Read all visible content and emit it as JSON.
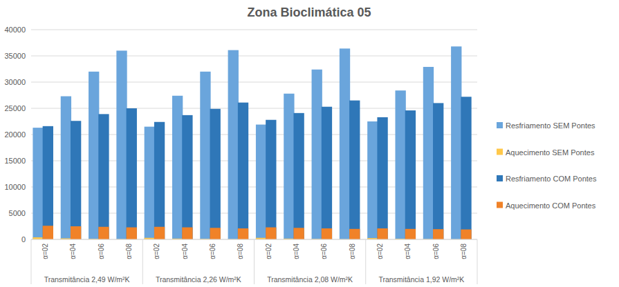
{
  "chart_data": {
    "type": "bar",
    "title": "Zona Bioclimática  05",
    "stacked": false,
    "grid": true,
    "legend": "right",
    "categories": [
      "α=02",
      "α=04",
      "α=06",
      "α=08",
      "α=02",
      "α=04",
      "α=06",
      "α=08",
      "α=02",
      "α=04",
      "α=06",
      "α=08",
      "α=02",
      "α=04",
      "α=06",
      "α=08"
    ],
    "category_groups": [
      {
        "label": "Transmitância 2,49 W/m²K",
        "count": 4
      },
      {
        "label": "Transmitância 2,26 W/m²K",
        "count": 4
      },
      {
        "label": "Transmitância 2,08 W/m²K",
        "count": 4
      },
      {
        "label": "Transmitância 1,92 W/m²K",
        "count": 4
      }
    ],
    "ylim": [
      0,
      40000
    ],
    "yticks": [
      0,
      5000,
      10000,
      15000,
      20000,
      25000,
      30000,
      35000,
      40000
    ],
    "series": [
      {
        "name": "Resfriamento SEM Pontes",
        "color": "#6aa5dc",
        "values": [
          21300,
          27300,
          32000,
          36000,
          21500,
          27400,
          32000,
          36100,
          21900,
          27800,
          32400,
          36400,
          22500,
          28400,
          32900,
          36800
        ]
      },
      {
        "name": "Aquecimento SEM Pontes",
        "color": "#ffc84a",
        "values": [
          400,
          200,
          100,
          50,
          300,
          150,
          100,
          50,
          300,
          150,
          80,
          40,
          250,
          120,
          60,
          30
        ]
      },
      {
        "name": "Resfriamento COM Pontes",
        "color": "#2f77b8",
        "values": [
          21600,
          22600,
          23900,
          25000,
          22400,
          23700,
          24900,
          26100,
          22800,
          24100,
          25300,
          26500,
          23300,
          24600,
          26000,
          27200
        ]
      },
      {
        "name": "Aquecimento COM Pontes",
        "color": "#f08228",
        "values": [
          2600,
          2500,
          2400,
          2300,
          2400,
          2300,
          2200,
          2100,
          2300,
          2200,
          2100,
          2000,
          2100,
          2000,
          1950,
          1900
        ]
      }
    ]
  }
}
